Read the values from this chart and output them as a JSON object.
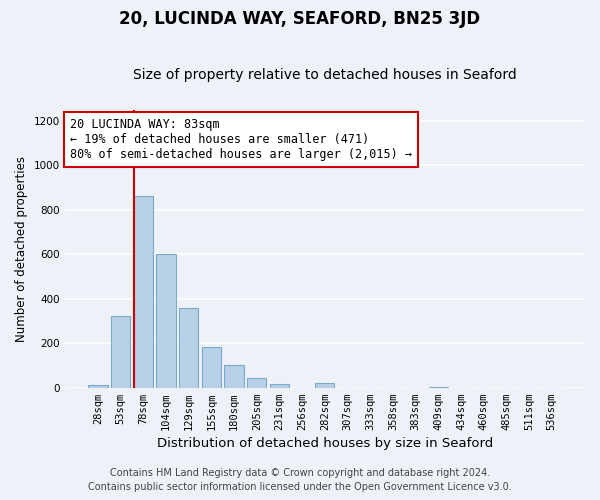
{
  "title": "20, LUCINDA WAY, SEAFORD, BN25 3JD",
  "subtitle": "Size of property relative to detached houses in Seaford",
  "xlabel": "Distribution of detached houses by size in Seaford",
  "ylabel": "Number of detached properties",
  "bar_labels": [
    "28sqm",
    "53sqm",
    "78sqm",
    "104sqm",
    "129sqm",
    "155sqm",
    "180sqm",
    "205sqm",
    "231sqm",
    "256sqm",
    "282sqm",
    "307sqm",
    "333sqm",
    "358sqm",
    "383sqm",
    "409sqm",
    "434sqm",
    "460sqm",
    "485sqm",
    "511sqm",
    "536sqm"
  ],
  "bar_values": [
    10,
    320,
    860,
    600,
    360,
    185,
    100,
    45,
    15,
    0,
    20,
    0,
    0,
    0,
    0,
    5,
    0,
    0,
    0,
    0,
    0
  ],
  "bar_color": "#b8d0e8",
  "bar_edge_color": "#7aaac8",
  "vline_color": "#cc0000",
  "annotation_text": "20 LUCINDA WAY: 83sqm\n← 19% of detached houses are smaller (471)\n80% of semi-detached houses are larger (2,015) →",
  "annotation_box_color": "#ffffff",
  "annotation_box_edge": "#cc0000",
  "ylim": [
    0,
    1250
  ],
  "yticks": [
    0,
    200,
    400,
    600,
    800,
    1000,
    1200
  ],
  "footer_line1": "Contains HM Land Registry data © Crown copyright and database right 2024.",
  "footer_line2": "Contains public sector information licensed under the Open Government Licence v3.0.",
  "background_color": "#eef2f8",
  "plot_bg_color": "#eef2f8",
  "grid_color": "#ffffff",
  "title_fontsize": 12,
  "subtitle_fontsize": 10,
  "xlabel_fontsize": 9.5,
  "ylabel_fontsize": 8.5,
  "tick_fontsize": 7.5,
  "annotation_fontsize": 8.5,
  "footer_fontsize": 7.0
}
